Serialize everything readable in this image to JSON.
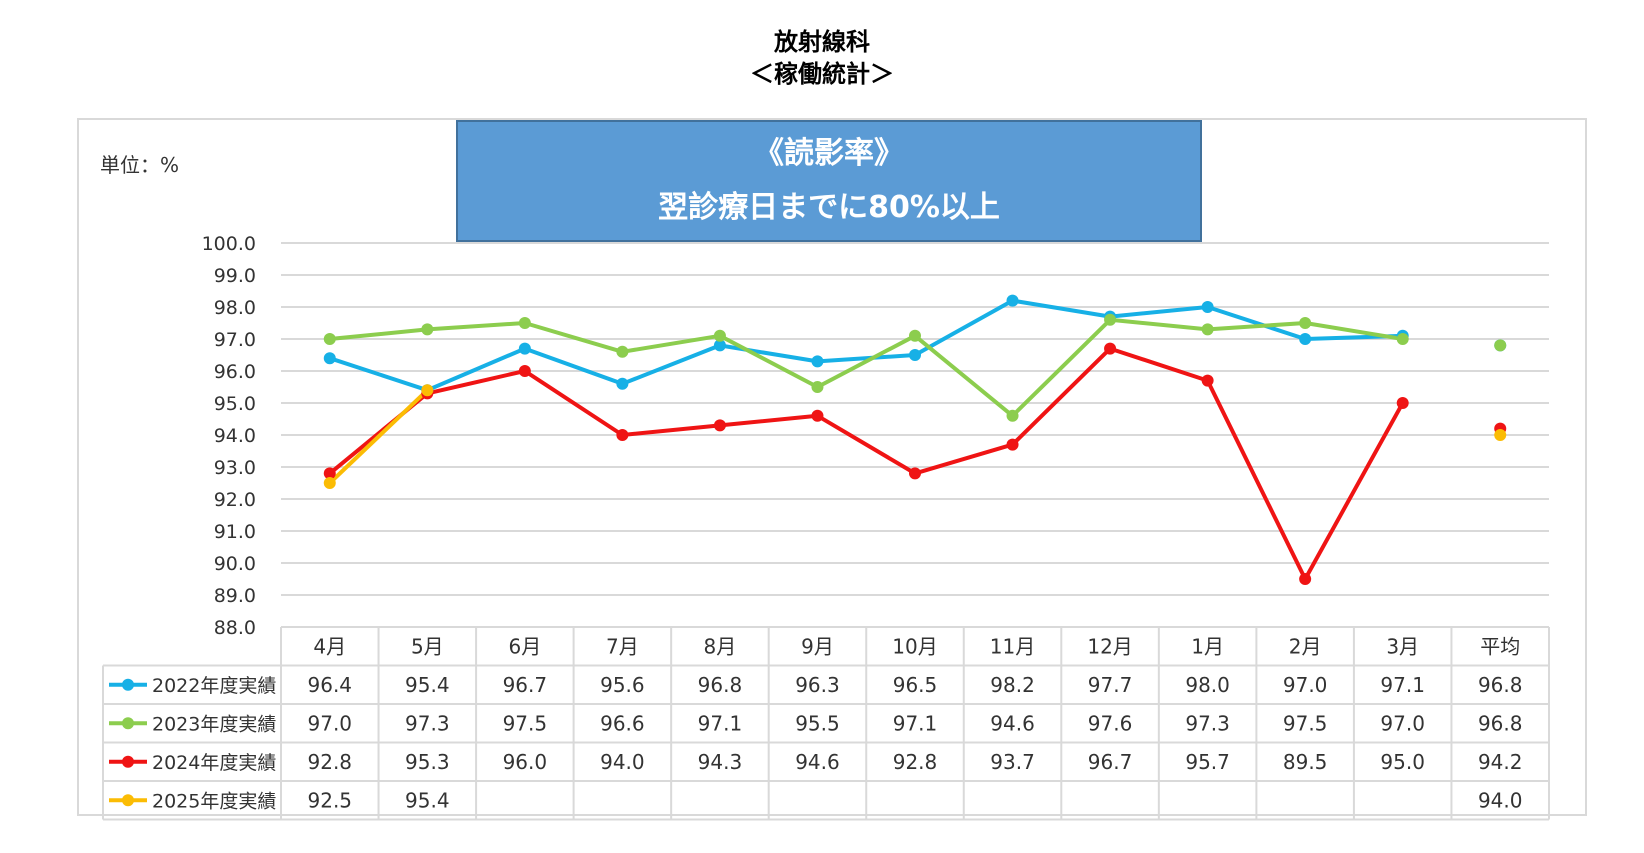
{
  "page_title_line1": "放射線科",
  "page_title_line2": "＜稼働統計＞",
  "unit_label": "単位：%",
  "banner": {
    "line1": "《読影率》",
    "line2": "翌診療日までに80%以上",
    "fill_color": "#5b9bd5"
  },
  "chart_data": {
    "type": "line",
    "title": "《読影率》",
    "subtitle": "翌診療日までに80%以上",
    "ylabel": "単位：%",
    "ylim": [
      88.0,
      100.0
    ],
    "ytick_step": 1.0,
    "yticks": [
      "100.0",
      "99.0",
      "98.0",
      "97.0",
      "96.0",
      "95.0",
      "94.0",
      "93.0",
      "92.0",
      "91.0",
      "90.0",
      "89.0",
      "88.0"
    ],
    "grid": true,
    "categories": [
      "4月",
      "5月",
      "6月",
      "7月",
      "8月",
      "9月",
      "10月",
      "11月",
      "12月",
      "1月",
      "2月",
      "3月",
      "平均"
    ],
    "average_category": "平均",
    "series": [
      {
        "name": "2022年度実績",
        "color": "#17b0e6",
        "values": [
          96.4,
          95.4,
          96.7,
          95.6,
          96.8,
          96.3,
          96.5,
          98.2,
          97.7,
          98.0,
          97.0,
          97.1,
          96.8
        ],
        "labels": [
          "96.4",
          "95.4",
          "96.7",
          "95.6",
          "96.8",
          "96.3",
          "96.5",
          "98.2",
          "97.7",
          "98.0",
          "97.0",
          "97.1",
          "96.8"
        ]
      },
      {
        "name": "2023年度実績",
        "color": "#8ccd4e",
        "values": [
          97.0,
          97.3,
          97.5,
          96.6,
          97.1,
          95.5,
          97.1,
          94.6,
          97.6,
          97.3,
          97.5,
          97.0,
          96.8
        ],
        "labels": [
          "97.0",
          "97.3",
          "97.5",
          "96.6",
          "97.1",
          "95.5",
          "97.1",
          "94.6",
          "97.6",
          "97.3",
          "97.5",
          "97.0",
          "96.8"
        ]
      },
      {
        "name": "2024年度実績",
        "color": "#ef1414",
        "values": [
          92.8,
          95.3,
          96.0,
          94.0,
          94.3,
          94.6,
          92.8,
          93.7,
          96.7,
          95.7,
          89.5,
          95.0,
          94.2
        ],
        "labels": [
          "92.8",
          "95.3",
          "96.0",
          "94.0",
          "94.3",
          "94.6",
          "92.8",
          "93.7",
          "96.7",
          "95.7",
          "89.5",
          "95.0",
          "94.2"
        ]
      },
      {
        "name": "2025年度実績",
        "color": "#fbbc04",
        "values": [
          92.5,
          95.4,
          null,
          null,
          null,
          null,
          null,
          null,
          null,
          null,
          null,
          null,
          94.0
        ],
        "labels": [
          "92.5",
          "95.4",
          "",
          "",
          "",
          "",
          "",
          "",
          "",
          "",
          "",
          "",
          "94.0"
        ]
      }
    ]
  }
}
